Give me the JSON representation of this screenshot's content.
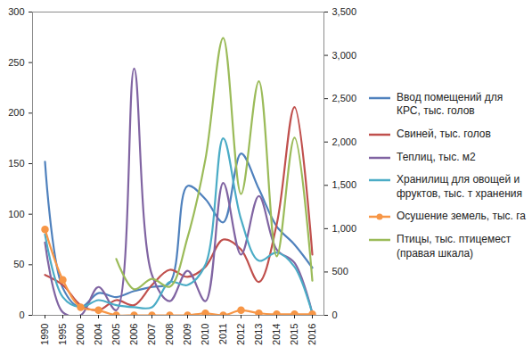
{
  "chart_data": {
    "type": "line",
    "categories": [
      "1990",
      "1995",
      "2000",
      "2004",
      "2005",
      "2006",
      "2007",
      "2008",
      "2009",
      "2010",
      "2011",
      "2012",
      "2013",
      "2014",
      "2015",
      "2016"
    ],
    "ylim": [
      0,
      300
    ],
    "yticks": [
      0,
      50,
      100,
      150,
      200,
      250,
      300
    ],
    "y2lim": [
      0,
      3500
    ],
    "y2ticks": [
      0,
      500,
      1000,
      1500,
      2000,
      2500,
      3000,
      3500
    ],
    "grid": false,
    "legend": "right",
    "series": [
      {
        "name": "Ввод помещений для КРС, тыс. голов",
        "color": "#4F81BD",
        "values": [
          152,
          27,
          8,
          22,
          18,
          24,
          28,
          32,
          128,
          115,
          92,
          160,
          125,
          88,
          70,
          47
        ]
      },
      {
        "name": "Свиней, тыс. голов",
        "color": "#C0504D",
        "values": [
          40,
          30,
          10,
          5,
          15,
          10,
          30,
          45,
          38,
          48,
          75,
          65,
          33,
          90,
          206,
          60
        ]
      },
      {
        "name": "Теплиц, тыс. м2",
        "color": "#8064A2",
        "values": [
          72,
          3,
          0,
          28,
          5,
          244,
          40,
          14,
          44,
          14,
          131,
          60,
          118,
          65,
          52,
          2
        ]
      },
      {
        "name": "Хранилищ для овощей и фруктов, тыс. т хранения",
        "color": "#4BACC6",
        "values": [
          80,
          18,
          8,
          15,
          10,
          8,
          8,
          33,
          30,
          50,
          175,
          95,
          54,
          62,
          48,
          2
        ]
      },
      {
        "name": "Осушение земель, тыс. га",
        "color": "#F79646",
        "marker": "circle",
        "values": [
          85,
          35,
          8,
          5,
          0,
          0,
          0,
          0,
          0,
          2,
          0,
          5,
          2,
          1,
          1,
          1
        ]
      },
      {
        "name": "Птицы, тыс. птицемест (правая шкала)",
        "color": "#9BBB59",
        "axis": "y2",
        "values": [
          null,
          null,
          null,
          null,
          650,
          300,
          420,
          330,
          900,
          1800,
          3200,
          1400,
          2700,
          680,
          2050,
          400
        ]
      }
    ]
  }
}
